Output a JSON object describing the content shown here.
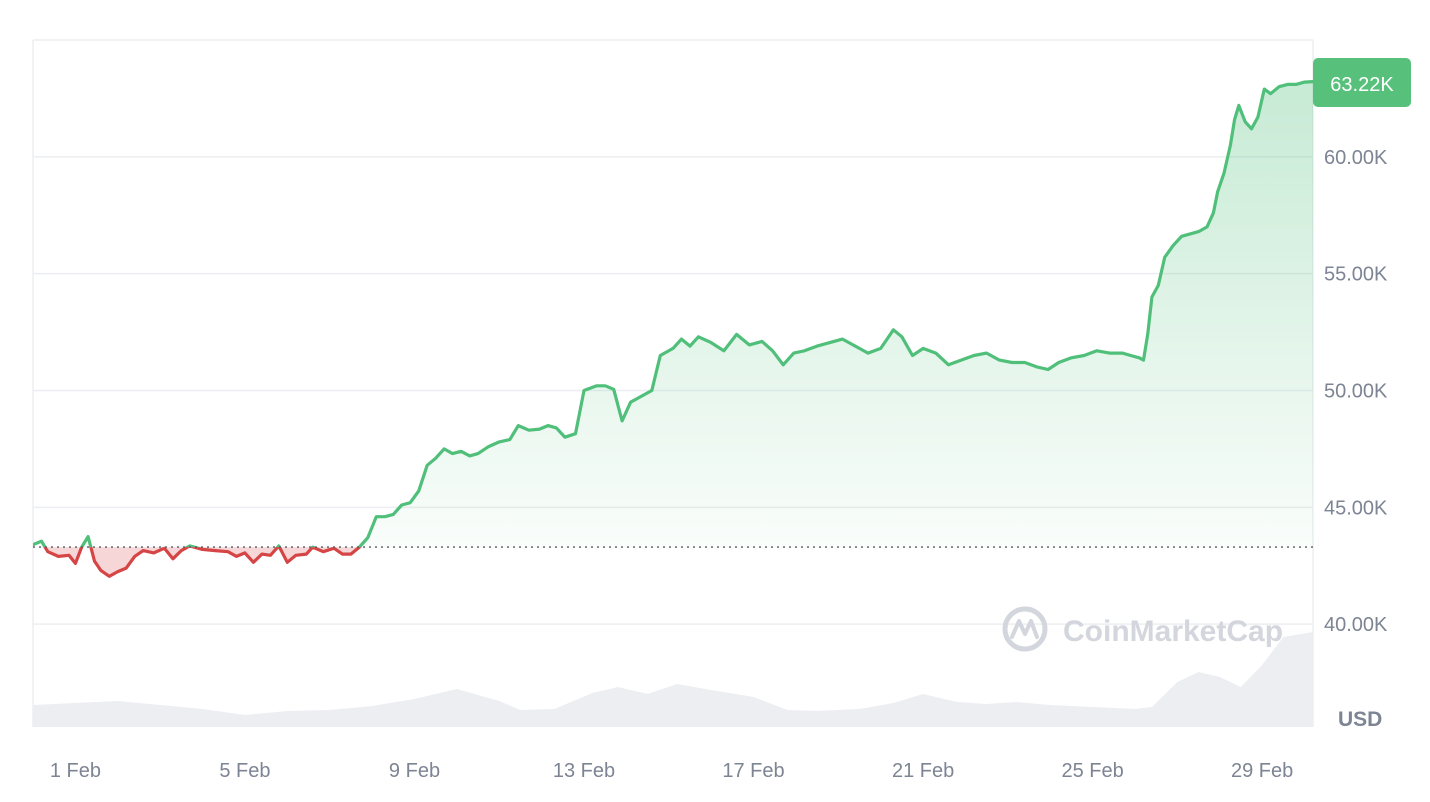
{
  "chart_data": {
    "type": "area",
    "currency": "USD",
    "watermark": "CoinMarketCap",
    "last_price_label": "63.22K",
    "baseline_value": 43300,
    "ylim": [
      35600,
      65000
    ],
    "y_ticks": [
      {
        "value": 40000,
        "label": "40.00K"
      },
      {
        "value": 45000,
        "label": "45.00K"
      },
      {
        "value": 50000,
        "label": "50.00K"
      },
      {
        "value": 55000,
        "label": "55.00K"
      },
      {
        "value": 60000,
        "label": "60.00K"
      }
    ],
    "xlim": [
      0,
      30.2
    ],
    "x_ticks": [
      {
        "value": 1,
        "label": "1 Feb"
      },
      {
        "value": 5,
        "label": "5 Feb"
      },
      {
        "value": 9,
        "label": "9 Feb"
      },
      {
        "value": 13,
        "label": "13 Feb"
      },
      {
        "value": 17,
        "label": "17 Feb"
      },
      {
        "value": 21,
        "label": "21 Feb"
      },
      {
        "value": 25,
        "label": "25 Feb"
      },
      {
        "value": 29,
        "label": "29 Feb"
      }
    ],
    "colors": {
      "up": "#4fbf7a",
      "down": "#d64545",
      "volume": "#eceef2",
      "grid": "#eceef1",
      "badge": "#57c17b"
    },
    "price": [
      [
        0,
        43400
      ],
      [
        0.2,
        43550
      ],
      [
        0.35,
        43100
      ],
      [
        0.6,
        42900
      ],
      [
        0.85,
        42950
      ],
      [
        1.0,
        42600
      ],
      [
        1.15,
        43300
      ],
      [
        1.3,
        43750
      ],
      [
        1.45,
        42700
      ],
      [
        1.6,
        42300
      ],
      [
        1.8,
        42050
      ],
      [
        2.0,
        42250
      ],
      [
        2.2,
        42400
      ],
      [
        2.4,
        42900
      ],
      [
        2.6,
        43150
      ],
      [
        2.85,
        43050
      ],
      [
        3.1,
        43250
      ],
      [
        3.3,
        42800
      ],
      [
        3.5,
        43150
      ],
      [
        3.7,
        43350
      ],
      [
        4.0,
        43200
      ],
      [
        4.3,
        43150
      ],
      [
        4.6,
        43100
      ],
      [
        4.8,
        42900
      ],
      [
        5.0,
        43050
      ],
      [
        5.2,
        42650
      ],
      [
        5.4,
        43000
      ],
      [
        5.6,
        42950
      ],
      [
        5.8,
        43350
      ],
      [
        6.0,
        42650
      ],
      [
        6.2,
        42950
      ],
      [
        6.45,
        43000
      ],
      [
        6.6,
        43300
      ],
      [
        6.85,
        43100
      ],
      [
        7.1,
        43250
      ],
      [
        7.3,
        43000
      ],
      [
        7.5,
        43000
      ],
      [
        7.7,
        43300
      ],
      [
        7.9,
        43700
      ],
      [
        8.1,
        44600
      ],
      [
        8.3,
        44600
      ],
      [
        8.5,
        44700
      ],
      [
        8.7,
        45100
      ],
      [
        8.9,
        45200
      ],
      [
        9.1,
        45700
      ],
      [
        9.3,
        46800
      ],
      [
        9.5,
        47100
      ],
      [
        9.7,
        47500
      ],
      [
        9.9,
        47300
      ],
      [
        10.1,
        47400
      ],
      [
        10.3,
        47200
      ],
      [
        10.5,
        47300
      ],
      [
        10.75,
        47600
      ],
      [
        11.0,
        47800
      ],
      [
        11.25,
        47900
      ],
      [
        11.45,
        48500
      ],
      [
        11.7,
        48300
      ],
      [
        11.95,
        48350
      ],
      [
        12.15,
        48500
      ],
      [
        12.35,
        48400
      ],
      [
        12.55,
        48000
      ],
      [
        12.8,
        48150
      ],
      [
        13.0,
        50000
      ],
      [
        13.3,
        50200
      ],
      [
        13.5,
        50200
      ],
      [
        13.7,
        50050
      ],
      [
        13.9,
        48700
      ],
      [
        14.1,
        49500
      ],
      [
        14.3,
        49700
      ],
      [
        14.6,
        50000
      ],
      [
        14.8,
        51500
      ],
      [
        15.1,
        51800
      ],
      [
        15.3,
        52200
      ],
      [
        15.5,
        51900
      ],
      [
        15.7,
        52300
      ],
      [
        16.0,
        52050
      ],
      [
        16.3,
        51700
      ],
      [
        16.6,
        52400
      ],
      [
        16.9,
        51950
      ],
      [
        17.2,
        52100
      ],
      [
        17.45,
        51700
      ],
      [
        17.7,
        51100
      ],
      [
        17.95,
        51600
      ],
      [
        18.2,
        51700
      ],
      [
        18.5,
        51900
      ],
      [
        18.8,
        52050
      ],
      [
        19.1,
        52200
      ],
      [
        19.4,
        51900
      ],
      [
        19.7,
        51600
      ],
      [
        20.0,
        51800
      ],
      [
        20.3,
        52600
      ],
      [
        20.5,
        52300
      ],
      [
        20.75,
        51500
      ],
      [
        21.0,
        51800
      ],
      [
        21.3,
        51600
      ],
      [
        21.6,
        51100
      ],
      [
        21.9,
        51300
      ],
      [
        22.2,
        51500
      ],
      [
        22.5,
        51600
      ],
      [
        22.8,
        51300
      ],
      [
        23.1,
        51200
      ],
      [
        23.4,
        51200
      ],
      [
        23.7,
        51000
      ],
      [
        23.95,
        50900
      ],
      [
        24.2,
        51200
      ],
      [
        24.5,
        51400
      ],
      [
        24.8,
        51500
      ],
      [
        25.1,
        51700
      ],
      [
        25.4,
        51600
      ],
      [
        25.7,
        51600
      ],
      [
        25.9,
        51500
      ],
      [
        26.1,
        51400
      ],
      [
        26.2,
        51300
      ],
      [
        26.3,
        52400
      ],
      [
        26.4,
        54000
      ],
      [
        26.55,
        54500
      ],
      [
        26.7,
        55700
      ],
      [
        26.9,
        56200
      ],
      [
        27.1,
        56600
      ],
      [
        27.3,
        56700
      ],
      [
        27.5,
        56800
      ],
      [
        27.7,
        57000
      ],
      [
        27.85,
        57600
      ],
      [
        27.95,
        58500
      ],
      [
        28.1,
        59300
      ],
      [
        28.25,
        60500
      ],
      [
        28.35,
        61600
      ],
      [
        28.45,
        62200
      ],
      [
        28.6,
        61500
      ],
      [
        28.75,
        61200
      ],
      [
        28.9,
        61700
      ],
      [
        29.05,
        62900
      ],
      [
        29.2,
        62700
      ],
      [
        29.4,
        63000
      ],
      [
        29.6,
        63100
      ],
      [
        29.8,
        63100
      ],
      [
        30.0,
        63200
      ],
      [
        30.2,
        63220
      ]
    ],
    "volume": [
      [
        0,
        0.22
      ],
      [
        1,
        0.24
      ],
      [
        2,
        0.26
      ],
      [
        3,
        0.22
      ],
      [
        4,
        0.18
      ],
      [
        5,
        0.12
      ],
      [
        6,
        0.16
      ],
      [
        7,
        0.17
      ],
      [
        8,
        0.21
      ],
      [
        9,
        0.28
      ],
      [
        10,
        0.38
      ],
      [
        11,
        0.26
      ],
      [
        11.5,
        0.17
      ],
      [
        12.3,
        0.18
      ],
      [
        13.2,
        0.34
      ],
      [
        13.8,
        0.4
      ],
      [
        14.5,
        0.33
      ],
      [
        15.2,
        0.43
      ],
      [
        16.0,
        0.37
      ],
      [
        17.0,
        0.3
      ],
      [
        17.8,
        0.17
      ],
      [
        18.5,
        0.16
      ],
      [
        19.5,
        0.18
      ],
      [
        20.3,
        0.24
      ],
      [
        21.0,
        0.33
      ],
      [
        21.8,
        0.25
      ],
      [
        22.5,
        0.23
      ],
      [
        23.2,
        0.25
      ],
      [
        24.0,
        0.22
      ],
      [
        25.0,
        0.2
      ],
      [
        26.0,
        0.18
      ],
      [
        26.4,
        0.2
      ],
      [
        27.0,
        0.45
      ],
      [
        27.5,
        0.55
      ],
      [
        28.0,
        0.5
      ],
      [
        28.5,
        0.4
      ],
      [
        29.0,
        0.62
      ],
      [
        29.5,
        0.9
      ],
      [
        30.2,
        0.95
      ]
    ]
  }
}
